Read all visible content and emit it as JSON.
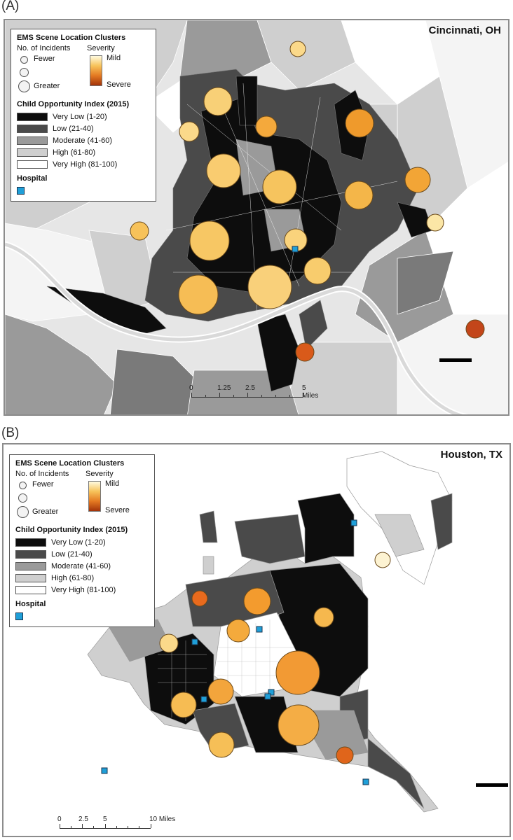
{
  "panels": [
    {
      "id": "A",
      "letter": "(A)",
      "city": "Cincinnati, OH",
      "legend": {
        "clusters_title": "EMS Scene Location Clusters",
        "incidents_label": "No. of Incidents",
        "fewer_label": "Fewer",
        "greater_label": "Greater",
        "severity_label": "Severity",
        "mild_label": "Mild",
        "severe_label": "Severe",
        "coi_title": "Child Opportunity Index (2015)",
        "coi_classes": [
          {
            "label": "Very Low (1-20)",
            "color": "#0d0d0d"
          },
          {
            "label": "Low (21-40)",
            "color": "#4a4a4a"
          },
          {
            "label": "Moderate (41-60)",
            "color": "#9a9a9a"
          },
          {
            "label": "High (61-80)",
            "color": "#cfcfcf"
          },
          {
            "label": "Very High (81-100)",
            "color": "#ffffff"
          }
        ],
        "hospital_label": "Hospital"
      },
      "scale": {
        "ticks": [
          "0",
          "1.25",
          "2.5",
          "5 Miles"
        ]
      }
    },
    {
      "id": "B",
      "letter": "(B)",
      "city": "Houston, TX",
      "legend": {
        "clusters_title": "EMS Scene Location Clusters",
        "incidents_label": "No. of Incidents",
        "fewer_label": "Fewer",
        "greater_label": "Greater",
        "severity_label": "Severity",
        "mild_label": "Mild",
        "severe_label": "Severe",
        "coi_title": "Child Opportunity Index (2015)",
        "coi_classes": [
          {
            "label": "Very Low (1-20)",
            "color": "#0d0d0d"
          },
          {
            "label": "Low (21-40)",
            "color": "#4a4a4a"
          },
          {
            "label": "Moderate (41-60)",
            "color": "#9a9a9a"
          },
          {
            "label": "High (61-80)",
            "color": "#cfcfcf"
          },
          {
            "label": "Very High (81-100)",
            "color": "#ffffff"
          }
        ],
        "hospital_label": "Hospital"
      },
      "scale": {
        "ticks": [
          "0",
          "2.5",
          "5",
          "10 Miles"
        ]
      }
    }
  ],
  "colors": {
    "hospital": "#1f9fd8",
    "river": "#d9d9d9",
    "frame": "#8c8c8c"
  }
}
